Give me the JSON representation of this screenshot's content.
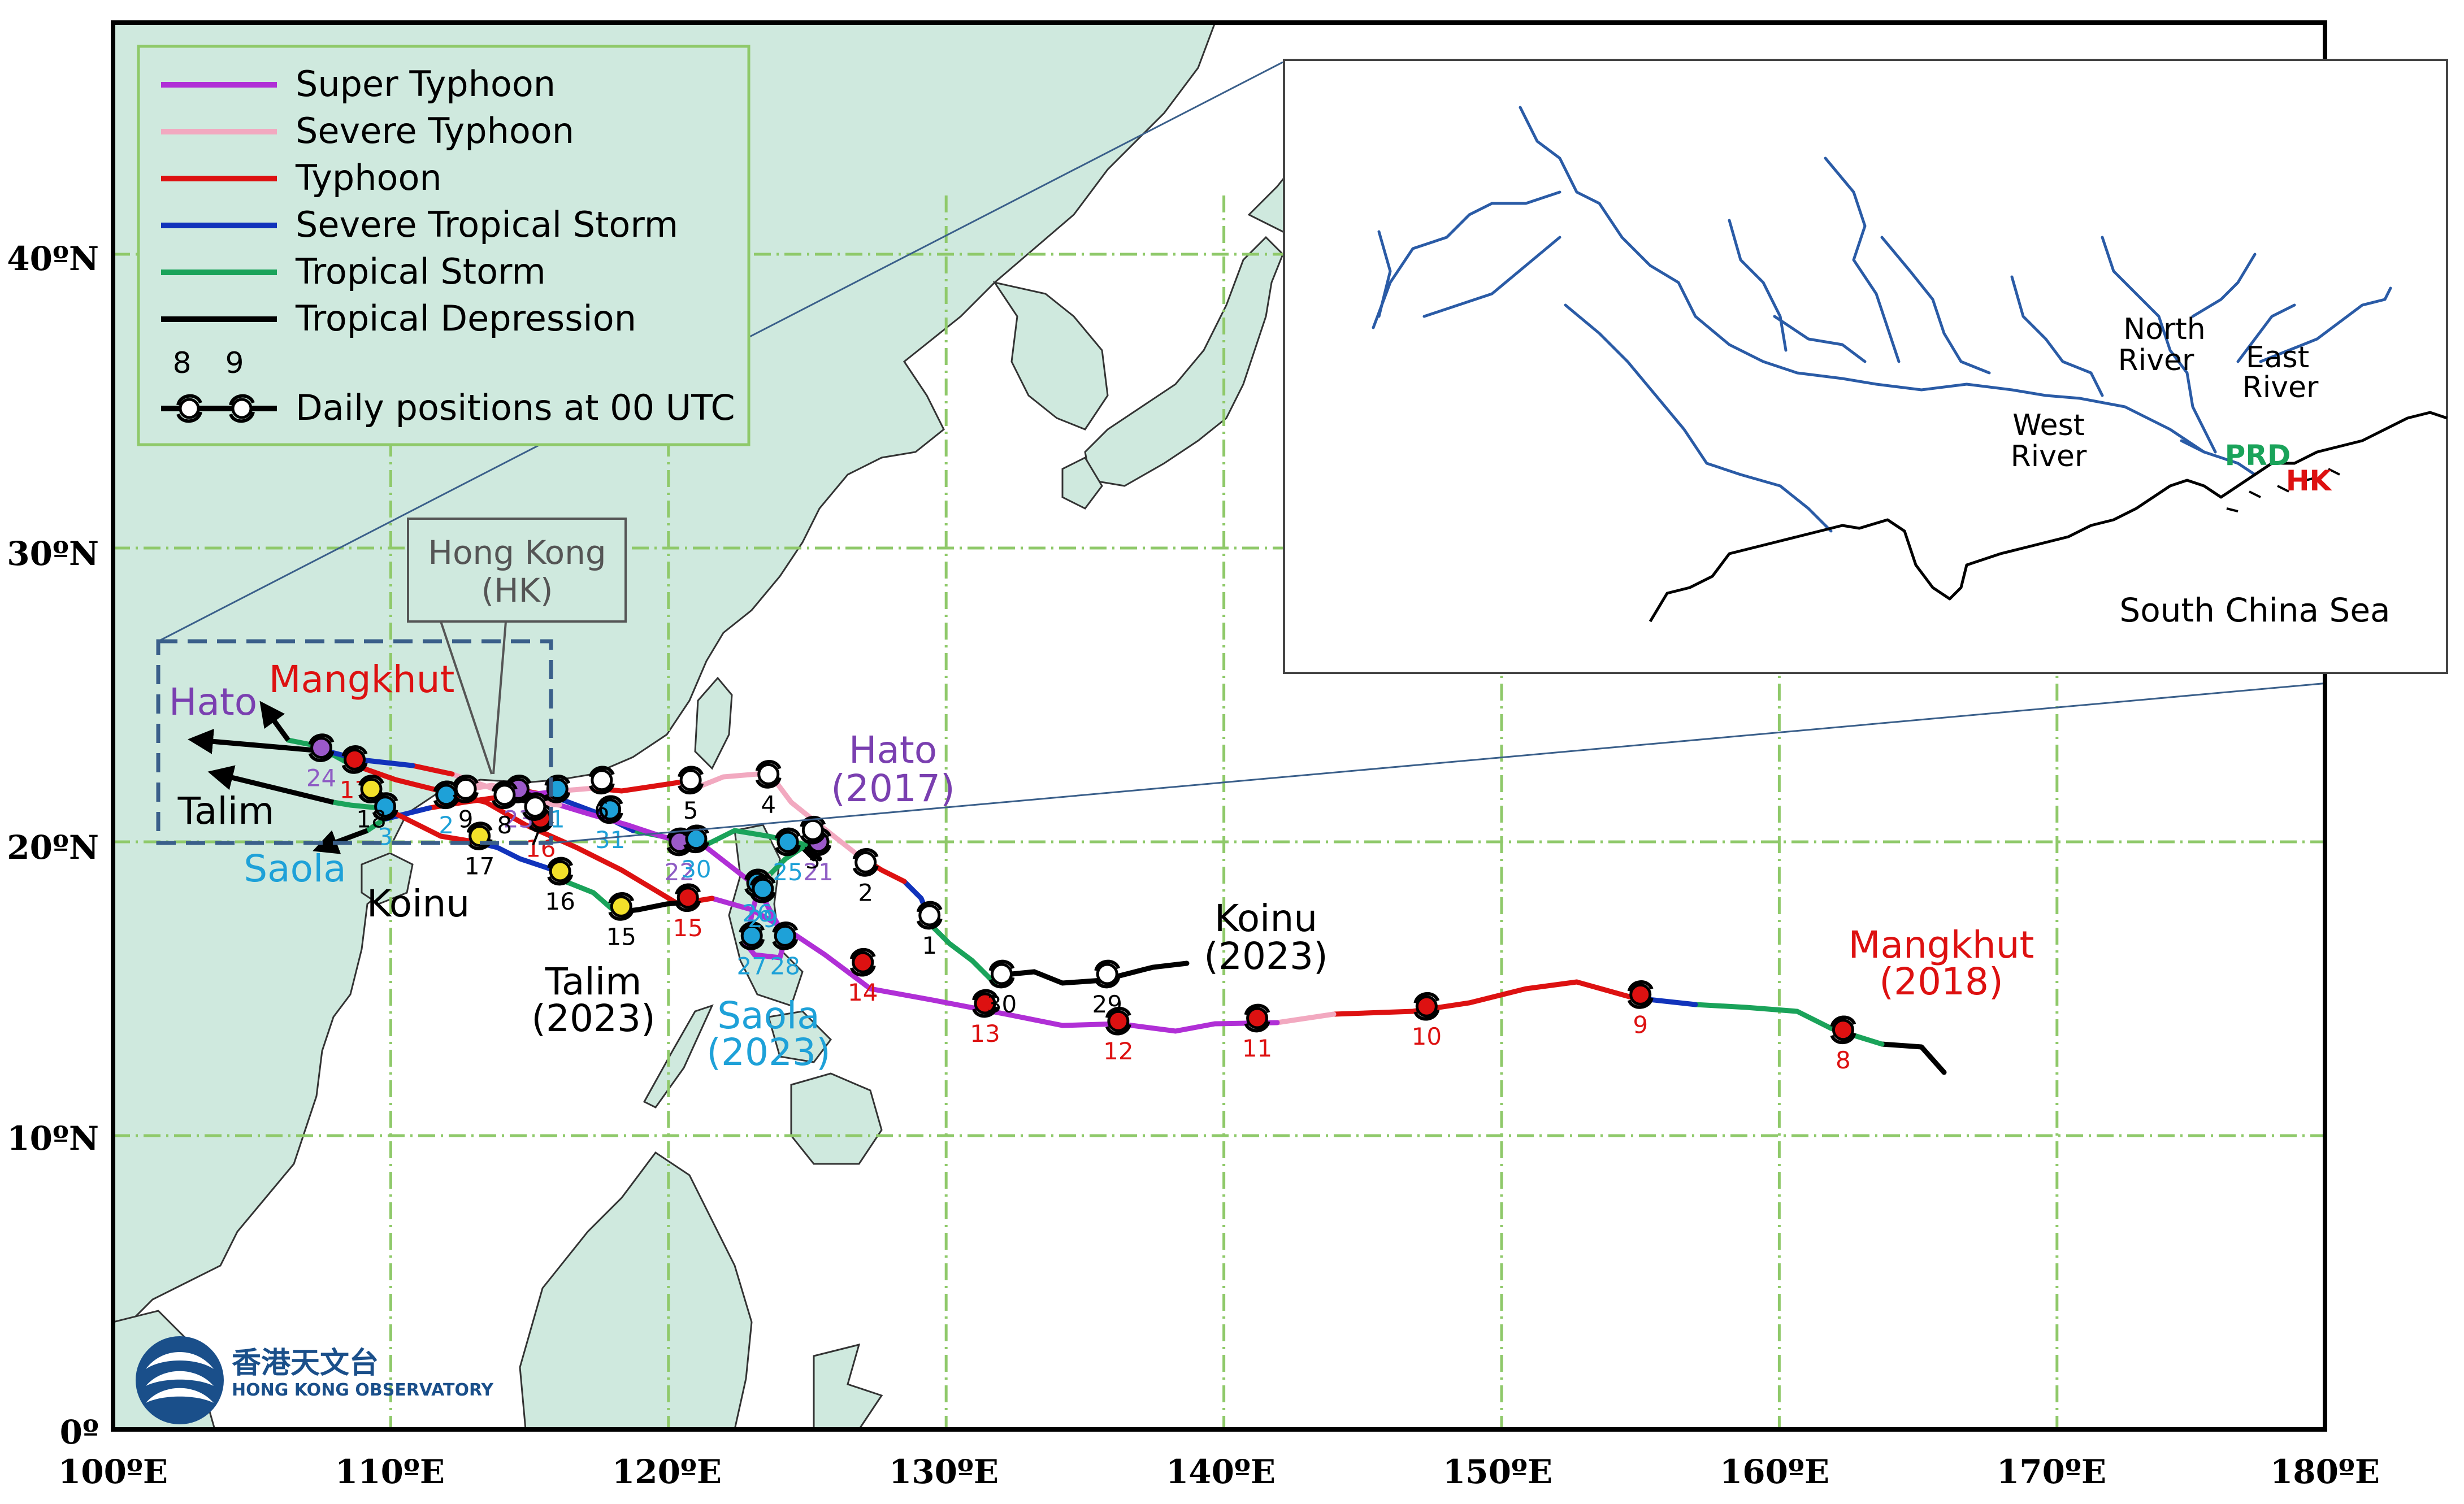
{
  "legend": {
    "items": [
      {
        "label": "Super Typhoon",
        "color": "#b02fd6"
      },
      {
        "label": "Severe Typhoon",
        "color": "#f2a9c0"
      },
      {
        "label": "Typhoon",
        "color": "#dd1111"
      },
      {
        "label": "Severe Tropical Storm",
        "color": "#1133bb"
      },
      {
        "label": "Tropical Storm",
        "color": "#1aa35a"
      },
      {
        "label": "Tropical Depression",
        "color": "#000000"
      }
    ],
    "daily_label": "Daily positions at 00 UTC",
    "daily_example_days": [
      "8",
      "9"
    ]
  },
  "axes": {
    "x_ticks": [
      "100ºE",
      "110ºE",
      "120ºE",
      "130ºE",
      "140ºE",
      "150ºE",
      "160ºE",
      "170ºE",
      "180ºE"
    ],
    "y_ticks": [
      "40ºN",
      "30ºN",
      "20ºN",
      "10ºN",
      "0º"
    ]
  },
  "hk_callout": {
    "line1": "Hong Kong",
    "line2": "(HK)"
  },
  "storms": [
    {
      "name_line1": "Mangkhut",
      "name_line2": "(2018)",
      "color": "#dd1111",
      "short": "Mangkhut",
      "days": [
        {
          "d": "8",
          "lon": 162.3,
          "lat": 13.6
        },
        {
          "d": "9",
          "lon": 155.0,
          "lat": 14.8
        },
        {
          "d": "10",
          "lon": 147.3,
          "lat": 14.4
        },
        {
          "d": "11",
          "lon": 141.2,
          "lat": 14.0
        },
        {
          "d": "12",
          "lon": 136.2,
          "lat": 13.9
        },
        {
          "d": "13",
          "lon": 131.4,
          "lat": 14.5
        },
        {
          "d": "14",
          "lon": 127.0,
          "lat": 15.9
        },
        {
          "d": "15",
          "lon": 120.7,
          "lat": 18.1
        },
        {
          "d": "16",
          "lon": 115.4,
          "lat": 20.8
        },
        {
          "d": "17",
          "lon": 108.7,
          "lat": 22.8
        }
      ]
    },
    {
      "name_line1": "Hato",
      "name_line2": "(2017)",
      "color": "#7a3fb0",
      "short": "Hato",
      "days": [
        {
          "d": "21",
          "lon": 125.4,
          "lat": 20.0
        },
        {
          "d": "22",
          "lon": 120.4,
          "lat": 20.0
        },
        {
          "d": "23",
          "lon": 114.6,
          "lat": 21.8
        },
        {
          "d": "24",
          "lon": 107.5,
          "lat": 23.2
        }
      ]
    },
    {
      "name_line1": "Saola",
      "name_line2": "(2023)",
      "color": "#1ea1d8",
      "short": "Saola",
      "days": [
        {
          "d": "25",
          "lon": 124.3,
          "lat": 20.0
        },
        {
          "d": "26",
          "lon": 123.2,
          "lat": 18.6
        },
        {
          "d": "27",
          "lon": 123.0,
          "lat": 16.8
        },
        {
          "d": "28",
          "lon": 124.2,
          "lat": 16.8
        },
        {
          "d": "29",
          "lon": 123.4,
          "lat": 18.4
        },
        {
          "d": "30",
          "lon": 121.0,
          "lat": 20.1
        },
        {
          "d": "31",
          "lon": 117.9,
          "lat": 21.1
        },
        {
          "d": "1",
          "lon": 116.0,
          "lat": 21.8
        },
        {
          "d": "2",
          "lon": 112.0,
          "lat": 21.6
        },
        {
          "d": "3",
          "lon": 109.8,
          "lat": 21.2
        }
      ]
    },
    {
      "name_line1": "Koinu",
      "name_line2": "(2023)",
      "color": "#000000",
      "short": "Koinu",
      "days": [
        {
          "d": "29",
          "lon": 135.8,
          "lat": 15.5
        },
        {
          "d": "30",
          "lon": 132.0,
          "lat": 15.5
        },
        {
          "d": "1",
          "lon": 129.4,
          "lat": 17.5
        },
        {
          "d": "2",
          "lon": 127.1,
          "lat": 19.3
        },
        {
          "d": "3",
          "lon": 125.2,
          "lat": 20.4
        },
        {
          "d": "4",
          "lon": 123.6,
          "lat": 22.3
        },
        {
          "d": "5",
          "lon": 120.8,
          "lat": 22.1
        },
        {
          "d": "6",
          "lon": 117.6,
          "lat": 22.1
        },
        {
          "d": "7",
          "lon": 115.2,
          "lat": 21.2
        },
        {
          "d": "8",
          "lon": 114.1,
          "lat": 21.6
        },
        {
          "d": "9",
          "lon": 112.7,
          "lat": 21.8
        }
      ]
    },
    {
      "name_line1": "Talim",
      "name_line2": "(2023)",
      "color": "#000000",
      "short": "Talim",
      "days": [
        {
          "d": "15",
          "lon": 118.3,
          "lat": 17.8
        },
        {
          "d": "16",
          "lon": 116.1,
          "lat": 19.0
        },
        {
          "d": "17",
          "lon": 113.2,
          "lat": 20.2
        },
        {
          "d": "18",
          "lon": 109.3,
          "lat": 21.8
        }
      ]
    }
  ],
  "inset": {
    "rivers": [
      {
        "line1": "North",
        "line2": "River"
      },
      {
        "line1": "East",
        "line2": "River"
      },
      {
        "line1": "West",
        "line2": "River"
      }
    ],
    "prd_label": "PRD",
    "hk_label": "HK",
    "sea_label": "South China Sea"
  },
  "logo": {
    "chinese": "香港天文台",
    "english": "HONG KONG OBSERVATORY"
  },
  "colors": {
    "land": "#cfe9de",
    "grid": "#8fc96a",
    "sea": "#ffffff"
  }
}
